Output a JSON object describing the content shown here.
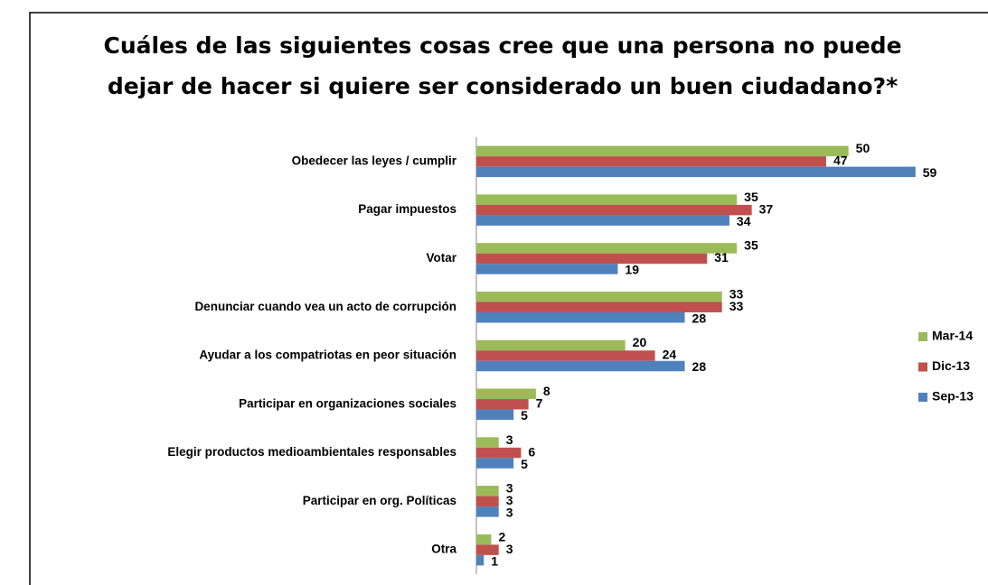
{
  "chart_data": {
    "type": "bar",
    "orientation": "horizontal",
    "title": [
      "Cuáles de las siguientes cosas cree que una persona no puede",
      "dejar de hacer si quiere ser considerado un buen ciudadano?*"
    ],
    "categories": [
      "Obedecer las leyes / cumplir",
      "Pagar impuestos",
      "Votar",
      "Denunciar cuando vea un acto de corrupción",
      "Ayudar a los compatriotas en peor situación",
      "Participar en organizaciones sociales",
      "Elegir productos medioambientales responsables",
      "Participar en org. Políticas",
      "Otra"
    ],
    "series": [
      {
        "name": "Mar-14",
        "color": "#9bbb59",
        "values": [
          50,
          35,
          35,
          33,
          20,
          8,
          3,
          3,
          2
        ]
      },
      {
        "name": "Dic-13",
        "color": "#c0504d",
        "values": [
          47,
          37,
          31,
          33,
          24,
          7,
          6,
          3,
          3
        ]
      },
      {
        "name": "Sep-13",
        "color": "#4f81bd",
        "values": [
          59,
          34,
          19,
          28,
          28,
          5,
          5,
          3,
          1
        ]
      }
    ],
    "xlim": [
      0,
      60
    ],
    "legend": "right"
  }
}
